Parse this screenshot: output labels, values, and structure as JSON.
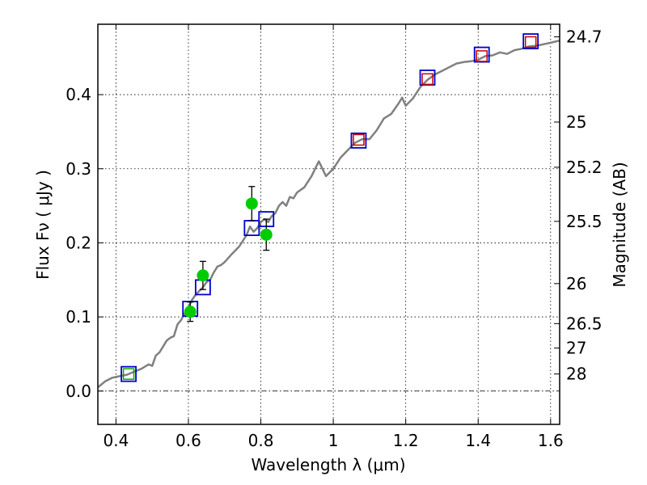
{
  "chart_data": {
    "type": "scatter",
    "xlabel": "Wavelength  λ (μm)",
    "ylabel": "Flux  Fν  ( μJy )",
    "y2label": "Magnitude (AB)",
    "xlim": [
      0.35,
      1.625
    ],
    "ylim": [
      -0.045,
      0.495
    ],
    "grid": true,
    "x_ticks": [
      0.4,
      0.6,
      0.8,
      1.0,
      1.2,
      1.4,
      1.6
    ],
    "x_tick_labels": [
      "0.4",
      "0.6",
      "0.8",
      "1",
      "1.2",
      "1.4",
      "1.6"
    ],
    "y_ticks": [
      0.0,
      0.1,
      0.2,
      0.3,
      0.4
    ],
    "y_tick_labels": [
      "0.0",
      "0.1",
      "0.2",
      "0.3",
      "0.4"
    ],
    "y2_ticks": [
      {
        "label": "24.7",
        "flux": 0.478
      },
      {
        "label": "25",
        "flux": 0.363
      },
      {
        "label": "25.2",
        "flux": 0.302
      },
      {
        "label": "25.5",
        "flux": 0.229
      },
      {
        "label": "26",
        "flux": 0.145
      },
      {
        "label": "26.5",
        "flux": 0.091
      },
      {
        "label": "27",
        "flux": 0.058
      },
      {
        "label": "28",
        "flux": 0.023
      }
    ],
    "model_spectrum": {
      "color": "#808080",
      "x": [
        0.35,
        0.37,
        0.39,
        0.41,
        0.43,
        0.45,
        0.47,
        0.49,
        0.5,
        0.51,
        0.52,
        0.53,
        0.54,
        0.55,
        0.56,
        0.57,
        0.58,
        0.59,
        0.6,
        0.61,
        0.62,
        0.63,
        0.64,
        0.65,
        0.66,
        0.67,
        0.68,
        0.69,
        0.7,
        0.72,
        0.74,
        0.76,
        0.77,
        0.78,
        0.79,
        0.8,
        0.81,
        0.82,
        0.83,
        0.84,
        0.85,
        0.86,
        0.87,
        0.88,
        0.89,
        0.9,
        0.92,
        0.94,
        0.96,
        0.97,
        0.98,
        1.0,
        1.02,
        1.04,
        1.06,
        1.08,
        1.1,
        1.12,
        1.14,
        1.16,
        1.18,
        1.19,
        1.2,
        1.22,
        1.24,
        1.26,
        1.28,
        1.3,
        1.32,
        1.34,
        1.36,
        1.38,
        1.4,
        1.42,
        1.44,
        1.46,
        1.48,
        1.5,
        1.52,
        1.54,
        1.56,
        1.58,
        1.6,
        1.625
      ],
      "y": [
        0.005,
        0.013,
        0.018,
        0.02,
        0.022,
        0.026,
        0.03,
        0.036,
        0.034,
        0.048,
        0.052,
        0.06,
        0.068,
        0.072,
        0.074,
        0.09,
        0.096,
        0.105,
        0.113,
        0.123,
        0.13,
        0.135,
        0.14,
        0.147,
        0.15,
        0.16,
        0.168,
        0.17,
        0.174,
        0.185,
        0.195,
        0.21,
        0.222,
        0.215,
        0.22,
        0.228,
        0.232,
        0.228,
        0.236,
        0.24,
        0.25,
        0.255,
        0.25,
        0.262,
        0.26,
        0.268,
        0.275,
        0.29,
        0.31,
        0.3,
        0.29,
        0.3,
        0.315,
        0.325,
        0.335,
        0.34,
        0.34,
        0.352,
        0.368,
        0.374,
        0.388,
        0.396,
        0.385,
        0.395,
        0.41,
        0.42,
        0.427,
        0.432,
        0.437,
        0.442,
        0.444,
        0.445,
        0.447,
        0.452,
        0.453,
        0.457,
        0.455,
        0.46,
        0.462,
        0.465,
        0.466,
        0.468,
        0.47,
        0.473
      ]
    },
    "model_photometry": {
      "color": "#0000cc",
      "x": [
        0.435,
        0.605,
        0.64,
        0.775,
        0.815,
        1.07,
        1.26,
        1.41,
        1.545
      ],
      "y": [
        0.023,
        0.111,
        0.14,
        0.22,
        0.232,
        0.338,
        0.423,
        0.454,
        0.472
      ]
    },
    "measured_square": {
      "color": "#cc0000",
      "outline": "#00aa00",
      "x": [
        0.435,
        1.07,
        1.26,
        1.41,
        1.545
      ],
      "y": [
        0.023,
        0.339,
        0.421,
        0.452,
        0.471
      ],
      "x_green": [
        0.435
      ]
    },
    "measured_points": {
      "color": "#00cc00",
      "x": [
        0.605,
        0.64,
        0.775,
        0.815
      ],
      "y": [
        0.107,
        0.156,
        0.253,
        0.211
      ],
      "err": [
        0.013,
        0.019,
        0.023,
        0.021
      ]
    }
  }
}
